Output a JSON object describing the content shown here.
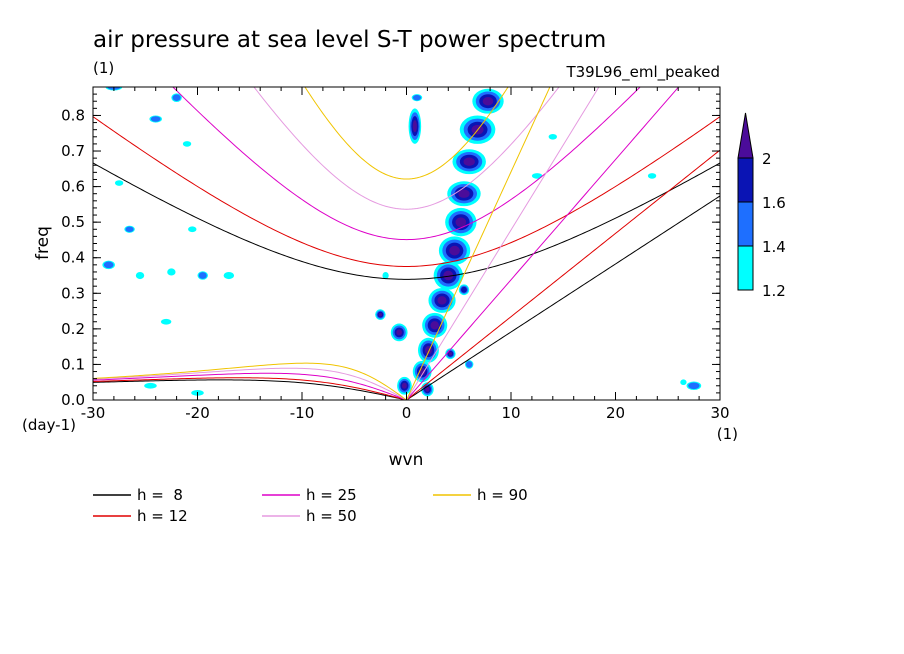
{
  "chart_data": {
    "type": "contour",
    "title": "air pressure at sea level S-T power spectrum",
    "units": "(1)",
    "run": "T39L96_eml_peaked",
    "xlabel": "wvn",
    "ylabel": "freq",
    "x_units": "(1)",
    "y_units": "(day-1)",
    "xlim": [
      -30,
      30
    ],
    "ylim": [
      0.0,
      0.88
    ],
    "xticks": [
      -30,
      -20,
      -10,
      0,
      10,
      20,
      30
    ],
    "yticks": [
      0.0,
      0.1,
      0.2,
      0.3,
      0.4,
      0.5,
      0.6,
      0.7,
      0.8
    ],
    "xtick_labels": [
      "-30",
      "-20",
      "-10",
      "0",
      "10",
      "20",
      "30"
    ],
    "ytick_labels": [
      "0.0",
      "0.1",
      "0.2",
      "0.3",
      "0.4",
      "0.5",
      "0.6",
      "0.7",
      "0.8"
    ],
    "colorbar": {
      "levels": [
        1.2,
        1.4,
        1.6,
        2
      ],
      "labels": [
        "1.2",
        "1.4",
        "1.6",
        "2"
      ],
      "colors": [
        "#00ffff",
        "#1e6fff",
        "#0a14b4",
        "#4b0c9a"
      ]
    },
    "dispersion_curves": [
      {
        "name": "h =  8",
        "h": 8,
        "color": "#000000"
      },
      {
        "name": "h = 12",
        "h": 12,
        "color": "#e00000"
      },
      {
        "name": "h = 25",
        "h": 25,
        "color": "#dd00c8"
      },
      {
        "name": "h = 50",
        "h": 50,
        "color": "#e59ae0"
      },
      {
        "name": "h = 90",
        "h": 90,
        "color": "#f0c400"
      }
    ],
    "contour_blobs": [
      {
        "x": 1.0,
        "y": 0.85,
        "rx": 0.5,
        "ry": 0.01,
        "level": 1
      },
      {
        "x": 0.8,
        "y": 0.77,
        "rx": 0.6,
        "ry": 0.05,
        "level": 3
      },
      {
        "x": 7.8,
        "y": 0.84,
        "rx": 1.5,
        "ry": 0.035,
        "level": 3
      },
      {
        "x": 6.8,
        "y": 0.76,
        "rx": 1.7,
        "ry": 0.04,
        "level": 3
      },
      {
        "x": 6.0,
        "y": 0.67,
        "rx": 1.6,
        "ry": 0.035,
        "level": 3
      },
      {
        "x": 5.5,
        "y": 0.58,
        "rx": 1.6,
        "ry": 0.035,
        "level": 3
      },
      {
        "x": 5.2,
        "y": 0.5,
        "rx": 1.5,
        "ry": 0.04,
        "level": 3
      },
      {
        "x": 4.6,
        "y": 0.42,
        "rx": 1.5,
        "ry": 0.04,
        "level": 3
      },
      {
        "x": 4.0,
        "y": 0.35,
        "rx": 1.4,
        "ry": 0.04,
        "level": 3
      },
      {
        "x": 3.4,
        "y": 0.28,
        "rx": 1.3,
        "ry": 0.035,
        "level": 3
      },
      {
        "x": 2.7,
        "y": 0.21,
        "rx": 1.2,
        "ry": 0.035,
        "level": 3
      },
      {
        "x": 2.1,
        "y": 0.14,
        "rx": 1.0,
        "ry": 0.035,
        "level": 3
      },
      {
        "x": 1.5,
        "y": 0.08,
        "rx": 0.9,
        "ry": 0.03,
        "level": 3
      },
      {
        "x": -0.2,
        "y": 0.04,
        "rx": 0.7,
        "ry": 0.025,
        "level": 3
      },
      {
        "x": 2.0,
        "y": 0.03,
        "rx": 0.6,
        "ry": 0.02,
        "level": 3
      },
      {
        "x": -0.7,
        "y": 0.19,
        "rx": 0.8,
        "ry": 0.025,
        "level": 3
      },
      {
        "x": -2.5,
        "y": 0.24,
        "rx": 0.5,
        "ry": 0.015,
        "level": 3
      },
      {
        "x": 4.2,
        "y": 0.13,
        "rx": 0.5,
        "ry": 0.015,
        "level": 3
      },
      {
        "x": 5.5,
        "y": 0.31,
        "rx": 0.5,
        "ry": 0.015,
        "level": 2
      },
      {
        "x": 6.0,
        "y": 0.1,
        "rx": 0.4,
        "ry": 0.012,
        "level": 1
      },
      {
        "x": -2.0,
        "y": 0.35,
        "rx": 0.3,
        "ry": 0.01,
        "level": 0
      },
      {
        "x": -28.0,
        "y": 0.88,
        "rx": 0.8,
        "ry": 0.01,
        "level": 1
      },
      {
        "x": -28.5,
        "y": 0.38,
        "rx": 0.6,
        "ry": 0.012,
        "level": 1
      },
      {
        "x": -26.5,
        "y": 0.48,
        "rx": 0.5,
        "ry": 0.01,
        "level": 1
      },
      {
        "x": -25.5,
        "y": 0.35,
        "rx": 0.4,
        "ry": 0.01,
        "level": 0
      },
      {
        "x": -22.5,
        "y": 0.36,
        "rx": 0.4,
        "ry": 0.01,
        "level": 0
      },
      {
        "x": -23.0,
        "y": 0.22,
        "rx": 0.5,
        "ry": 0.008,
        "level": 0
      },
      {
        "x": -19.5,
        "y": 0.35,
        "rx": 0.5,
        "ry": 0.012,
        "level": 1
      },
      {
        "x": -17.0,
        "y": 0.35,
        "rx": 0.5,
        "ry": 0.01,
        "level": 0
      },
      {
        "x": -20.5,
        "y": 0.48,
        "rx": 0.4,
        "ry": 0.008,
        "level": 0
      },
      {
        "x": -24.0,
        "y": 0.79,
        "rx": 0.6,
        "ry": 0.01,
        "level": 1
      },
      {
        "x": -22.0,
        "y": 0.85,
        "rx": 0.5,
        "ry": 0.012,
        "level": 1
      },
      {
        "x": -24.5,
        "y": 0.04,
        "rx": 0.6,
        "ry": 0.008,
        "level": 0
      },
      {
        "x": -20.0,
        "y": 0.02,
        "rx": 0.6,
        "ry": 0.008,
        "level": 0
      },
      {
        "x": -27.5,
        "y": 0.61,
        "rx": 0.4,
        "ry": 0.008,
        "level": 0
      },
      {
        "x": -21.0,
        "y": 0.72,
        "rx": 0.4,
        "ry": 0.008,
        "level": 0
      },
      {
        "x": 12.5,
        "y": 0.63,
        "rx": 0.5,
        "ry": 0.008,
        "level": 0
      },
      {
        "x": 14.0,
        "y": 0.74,
        "rx": 0.4,
        "ry": 0.008,
        "level": 0
      },
      {
        "x": 23.5,
        "y": 0.63,
        "rx": 0.4,
        "ry": 0.008,
        "level": 0
      },
      {
        "x": 27.5,
        "y": 0.04,
        "rx": 0.7,
        "ry": 0.012,
        "level": 1
      },
      {
        "x": 26.5,
        "y": 0.05,
        "rx": 0.3,
        "ry": 0.008,
        "level": 0
      }
    ]
  }
}
